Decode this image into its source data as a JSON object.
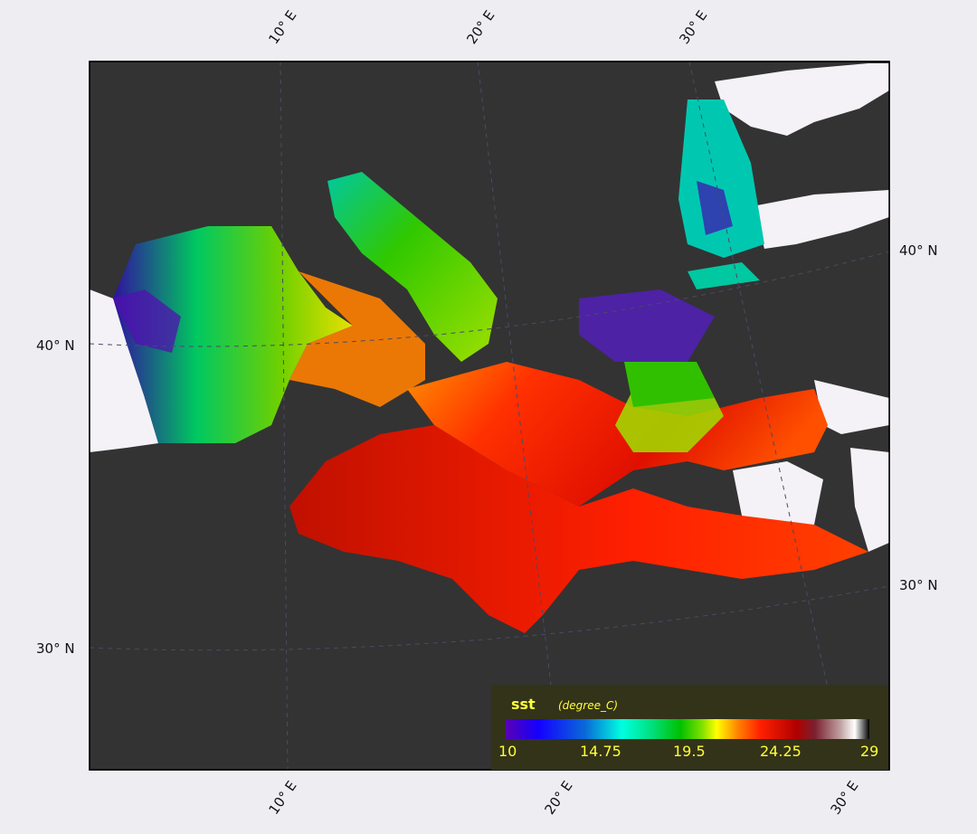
{
  "variable": "sst",
  "unit": "(degree_C)",
  "colorbar": {
    "ticks": [
      "10",
      "14.75",
      "19.5",
      "24.25",
      "29"
    ],
    "min": 10,
    "max": 29
  },
  "longitude_labels_top": [
    "10° E",
    "20° E",
    "30° E"
  ],
  "longitude_labels_bottom": [
    "10° E",
    "20° E",
    "30° E"
  ],
  "latitude_labels_left": [
    "40° N",
    "30° N"
  ],
  "latitude_labels_right": [
    "40° N",
    "30° N"
  ],
  "colors": {
    "background": "#eeedf2",
    "land_dark": "#333333",
    "legend_bg": "#333319",
    "legend_text": "#ffff3a",
    "no_data": "#f4f2f6"
  }
}
